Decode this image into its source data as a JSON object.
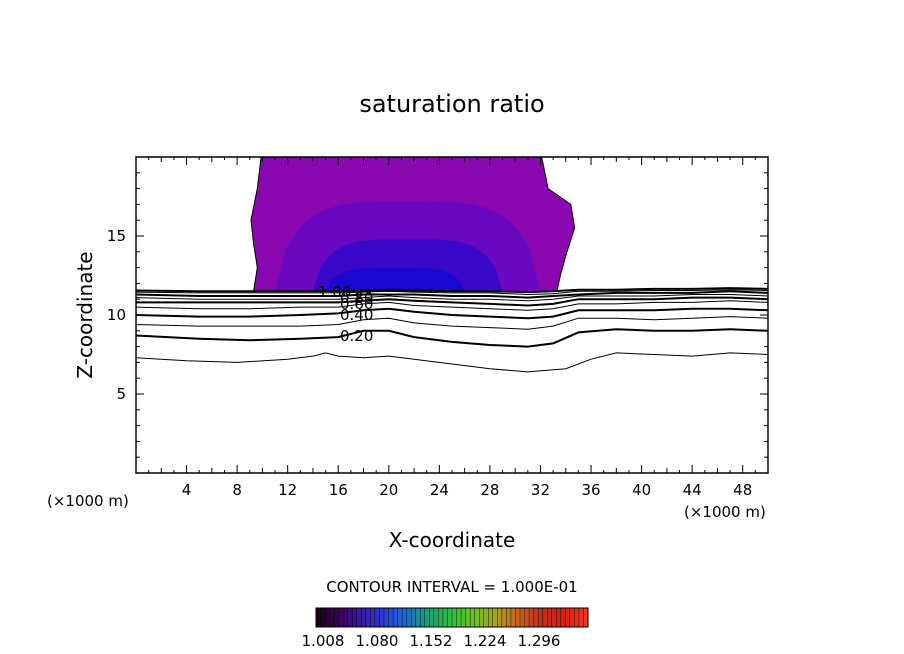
{
  "chart_data": {
    "type": "contour",
    "title": "saturation ratio",
    "xlabel": "X-coordinate",
    "ylabel": "Z-coordinate",
    "x_unit_left": "(×1000 m)",
    "x_unit_right": "(×1000 m)",
    "xlim": [
      0,
      50
    ],
    "ylim": [
      0,
      20
    ],
    "x_ticks": [
      4,
      8,
      12,
      16,
      20,
      24,
      28,
      32,
      36,
      40,
      44,
      48
    ],
    "y_ticks": [
      5,
      10,
      15
    ],
    "contour_interval_text": "CONTOUR INTERVAL = 1.000E-01",
    "contour_labels": [
      "1.00",
      "0.80",
      "0.60",
      "0.40",
      "0.20"
    ],
    "colorbar": {
      "tick_labels": [
        "1.008",
        "1.080",
        "1.152",
        "1.224",
        "1.296"
      ],
      "colors": [
        "#200018",
        "#3a005c",
        "#3a1aa8",
        "#2a40d8",
        "#1c70c8",
        "#20a070",
        "#30c040",
        "#70c020",
        "#a8a020",
        "#c86020",
        "#c03020",
        "#d82010",
        "#f03828"
      ]
    },
    "supersaturated_region": {
      "x_range": [
        9.5,
        33
      ],
      "z_range": [
        11.5,
        20
      ],
      "colors": {
        "outer": "#8a08b0",
        "inner": "#1a08d0"
      }
    },
    "contour_lines": [
      {
        "level": "0.10",
        "bold": false,
        "points": [
          [
            0,
            7.3
          ],
          [
            4,
            7.1
          ],
          [
            8,
            7.0
          ],
          [
            12,
            7.2
          ],
          [
            14,
            7.4
          ],
          [
            15,
            7.6
          ],
          [
            16,
            7.4
          ],
          [
            18,
            7.3
          ],
          [
            20,
            7.4
          ],
          [
            22,
            7.2
          ],
          [
            25,
            6.9
          ],
          [
            28,
            6.6
          ],
          [
            31,
            6.4
          ],
          [
            34,
            6.6
          ],
          [
            36,
            7.2
          ],
          [
            38,
            7.6
          ],
          [
            41,
            7.5
          ],
          [
            44,
            7.4
          ],
          [
            47,
            7.6
          ],
          [
            50,
            7.5
          ]
        ]
      },
      {
        "level": "0.20",
        "bold": true,
        "points": [
          [
            0,
            8.7
          ],
          [
            5,
            8.5
          ],
          [
            9,
            8.4
          ],
          [
            13,
            8.5
          ],
          [
            16,
            8.6
          ],
          [
            18,
            9.0
          ],
          [
            20,
            9.0
          ],
          [
            22,
            8.6
          ],
          [
            25,
            8.3
          ],
          [
            28,
            8.1
          ],
          [
            31,
            8.0
          ],
          [
            33,
            8.2
          ],
          [
            35,
            8.9
          ],
          [
            38,
            9.1
          ],
          [
            41,
            9.0
          ],
          [
            44,
            9.0
          ],
          [
            47,
            9.1
          ],
          [
            50,
            9.0
          ]
        ]
      },
      {
        "level": "0.30",
        "bold": false,
        "points": [
          [
            0,
            9.4
          ],
          [
            5,
            9.3
          ],
          [
            9,
            9.3
          ],
          [
            13,
            9.3
          ],
          [
            16,
            9.4
          ],
          [
            18,
            9.7
          ],
          [
            20,
            9.8
          ],
          [
            22,
            9.5
          ],
          [
            25,
            9.3
          ],
          [
            28,
            9.2
          ],
          [
            31,
            9.1
          ],
          [
            33,
            9.3
          ],
          [
            35,
            9.8
          ],
          [
            38,
            9.8
          ],
          [
            41,
            9.7
          ],
          [
            44,
            9.8
          ],
          [
            47,
            9.9
          ],
          [
            50,
            9.8
          ]
        ]
      },
      {
        "level": "0.40",
        "bold": true,
        "points": [
          [
            0,
            10.0
          ],
          [
            5,
            9.9
          ],
          [
            9,
            9.9
          ],
          [
            13,
            10.0
          ],
          [
            16,
            10.1
          ],
          [
            18,
            10.3
          ],
          [
            20,
            10.4
          ],
          [
            22,
            10.2
          ],
          [
            25,
            10.0
          ],
          [
            28,
            9.9
          ],
          [
            31,
            9.8
          ],
          [
            33,
            9.9
          ],
          [
            35,
            10.3
          ],
          [
            38,
            10.3
          ],
          [
            41,
            10.3
          ],
          [
            44,
            10.4
          ],
          [
            47,
            10.4
          ],
          [
            50,
            10.3
          ]
        ]
      },
      {
        "level": "0.50",
        "bold": false,
        "points": [
          [
            0,
            10.5
          ],
          [
            5,
            10.4
          ],
          [
            9,
            10.4
          ],
          [
            13,
            10.5
          ],
          [
            16,
            10.5
          ],
          [
            18,
            10.7
          ],
          [
            20,
            10.8
          ],
          [
            22,
            10.6
          ],
          [
            25,
            10.5
          ],
          [
            28,
            10.4
          ],
          [
            31,
            10.3
          ],
          [
            33,
            10.4
          ],
          [
            35,
            10.7
          ],
          [
            38,
            10.7
          ],
          [
            41,
            10.8
          ],
          [
            44,
            10.8
          ],
          [
            47,
            10.9
          ],
          [
            50,
            10.8
          ]
        ]
      },
      {
        "level": "0.60",
        "bold": true,
        "points": [
          [
            0,
            10.8
          ],
          [
            5,
            10.8
          ],
          [
            9,
            10.8
          ],
          [
            13,
            10.8
          ],
          [
            16,
            10.8
          ],
          [
            18,
            10.9
          ],
          [
            20,
            11.0
          ],
          [
            22,
            10.9
          ],
          [
            25,
            10.8
          ],
          [
            28,
            10.7
          ],
          [
            31,
            10.6
          ],
          [
            33,
            10.7
          ],
          [
            35,
            11.0
          ],
          [
            38,
            11.0
          ],
          [
            41,
            11.0
          ],
          [
            44,
            11.1
          ],
          [
            47,
            11.1
          ],
          [
            50,
            11.0
          ]
        ]
      },
      {
        "level": "0.70",
        "bold": false,
        "points": [
          [
            0,
            11.1
          ],
          [
            5,
            11.0
          ],
          [
            9,
            11.0
          ],
          [
            13,
            11.0
          ],
          [
            16,
            11.0
          ],
          [
            18,
            11.1
          ],
          [
            20,
            11.2
          ],
          [
            22,
            11.1
          ],
          [
            25,
            11.0
          ],
          [
            28,
            11.0
          ],
          [
            31,
            10.9
          ],
          [
            33,
            11.0
          ],
          [
            35,
            11.2
          ],
          [
            38,
            11.2
          ],
          [
            41,
            11.2
          ],
          [
            44,
            11.3
          ],
          [
            47,
            11.3
          ],
          [
            50,
            11.2
          ]
        ]
      },
      {
        "level": "0.80",
        "bold": true,
        "points": [
          [
            0,
            11.3
          ],
          [
            5,
            11.2
          ],
          [
            9,
            11.2
          ],
          [
            13,
            11.2
          ],
          [
            16,
            11.2
          ],
          [
            18,
            11.3
          ],
          [
            20,
            11.3
          ],
          [
            22,
            11.3
          ],
          [
            25,
            11.2
          ],
          [
            28,
            11.2
          ],
          [
            31,
            11.1
          ],
          [
            33,
            11.2
          ],
          [
            35,
            11.3
          ],
          [
            38,
            11.4
          ],
          [
            41,
            11.4
          ],
          [
            44,
            11.4
          ],
          [
            47,
            11.5
          ],
          [
            50,
            11.4
          ]
        ]
      },
      {
        "level": "0.90",
        "bold": false,
        "points": [
          [
            0,
            11.45
          ],
          [
            5,
            11.4
          ],
          [
            9,
            11.4
          ],
          [
            13,
            11.4
          ],
          [
            16,
            11.4
          ],
          [
            18,
            11.45
          ],
          [
            20,
            11.5
          ],
          [
            22,
            11.45
          ],
          [
            25,
            11.4
          ],
          [
            28,
            11.4
          ],
          [
            31,
            11.3
          ],
          [
            33,
            11.35
          ],
          [
            35,
            11.5
          ],
          [
            38,
            11.5
          ],
          [
            41,
            11.55
          ],
          [
            44,
            11.55
          ],
          [
            47,
            11.6
          ],
          [
            50,
            11.55
          ]
        ]
      },
      {
        "level": "1.00",
        "bold": true,
        "points": [
          [
            0,
            11.55
          ],
          [
            5,
            11.5
          ],
          [
            9,
            11.5
          ],
          [
            13,
            11.5
          ],
          [
            16,
            11.5
          ],
          [
            18,
            11.55
          ],
          [
            20,
            11.6
          ],
          [
            22,
            11.55
          ],
          [
            25,
            11.5
          ],
          [
            28,
            11.5
          ],
          [
            31,
            11.45
          ],
          [
            33,
            11.5
          ],
          [
            35,
            11.6
          ],
          [
            38,
            11.6
          ],
          [
            41,
            11.65
          ],
          [
            44,
            11.65
          ],
          [
            47,
            11.7
          ],
          [
            50,
            11.65
          ]
        ]
      }
    ]
  }
}
